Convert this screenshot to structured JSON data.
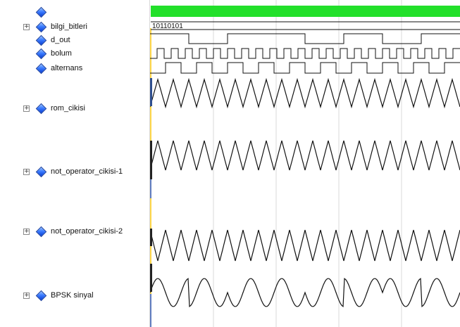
{
  "colors": {
    "wave_line": "#111111",
    "top_bar": "#22e02a",
    "cursor_line": "#ffd84a",
    "grid_line": "#d9d9d9",
    "bar_left": "#2f4f8f",
    "signal_icon": "#2a5fe8"
  },
  "signals": [
    {
      "id": "top",
      "label": "",
      "expandable": false
    },
    {
      "id": "bilgi_bitleri",
      "label": "bilgi_bitleri",
      "expandable": true,
      "value_text": "10110101"
    },
    {
      "id": "d_out",
      "label": "d_out",
      "expandable": false
    },
    {
      "id": "bolum",
      "label": "bolum",
      "expandable": false
    },
    {
      "id": "alternans",
      "label": "alternans",
      "expandable": false
    },
    {
      "id": "rom_cikisi",
      "label": "rom_cikisi",
      "expandable": true
    },
    {
      "id": "not_operator_cikisi_1",
      "label": "not_operator_cikisi-1",
      "expandable": true
    },
    {
      "id": "not_operator_cikisi_2",
      "label": "not_operator_cikisi-2",
      "expandable": true
    },
    {
      "id": "bpsk_sinyal",
      "label": "BPSK sinyal",
      "expandable": true
    }
  ],
  "waves": {
    "d_out_bits": [
      1,
      0,
      1,
      1,
      0,
      1,
      0,
      1
    ]
  }
}
